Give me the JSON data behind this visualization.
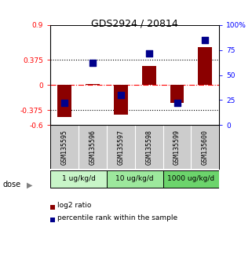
{
  "title": "GDS2924 / 20814",
  "samples": [
    "GSM135595",
    "GSM135596",
    "GSM135597",
    "GSM135598",
    "GSM135599",
    "GSM135600"
  ],
  "log2_ratio": [
    -0.48,
    0.02,
    -0.44,
    0.28,
    -0.27,
    0.57
  ],
  "percentile_rank": [
    22,
    62,
    30,
    72,
    22,
    85
  ],
  "ylim_left": [
    -0.6,
    0.9
  ],
  "ylim_right": [
    0,
    100
  ],
  "yticks_left": [
    -0.6,
    -0.375,
    0,
    0.375,
    0.9
  ],
  "ytick_labels_left": [
    "-0.6",
    "-0.375",
    "0",
    "0.375",
    "0.9"
  ],
  "yticks_right": [
    0,
    25,
    50,
    75,
    100
  ],
  "ytick_labels_right": [
    "0",
    "25",
    "50",
    "75",
    "100%"
  ],
  "hlines": [
    0.375,
    -0.375
  ],
  "dose_groups": [
    {
      "label": "1 ug/kg/d",
      "indices": [
        0,
        1
      ],
      "color": "#c8f5c8"
    },
    {
      "label": "10 ug/kg/d",
      "indices": [
        2,
        3
      ],
      "color": "#9de89d"
    },
    {
      "label": "1000 ug/kg/d",
      "indices": [
        4,
        5
      ],
      "color": "#6cd46c"
    }
  ],
  "bar_color": "#8b0000",
  "dot_color": "#00008b",
  "dose_label": "dose",
  "legend_bar_label": "log2 ratio",
  "legend_dot_label": "percentile rank within the sample",
  "bar_width": 0.5,
  "dot_size": 30,
  "sample_box_color": "#cccccc",
  "background_color": "#ffffff"
}
